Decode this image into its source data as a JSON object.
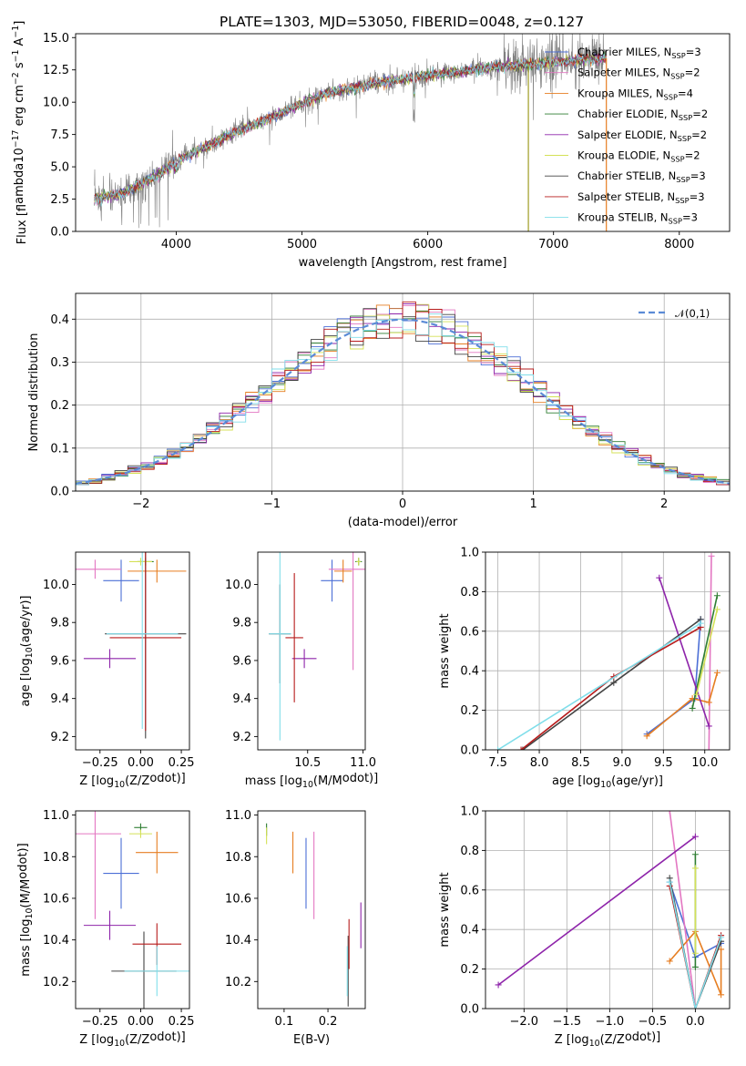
{
  "figure": {
    "title": "PLATE=1303, MJD=53050, FIBERID=0048, z=0.127"
  },
  "legend_spectra": [
    {
      "label": "Chabrier MILES, N$_{SSP}$=3",
      "color": "#4c6fd6"
    },
    {
      "label": "Salpeter MILES, N$_{SSP}$=2",
      "color": "#e377c2"
    },
    {
      "label": "Kroupa MILES, N$_{SSP}$=4",
      "color": "#e67e22"
    },
    {
      "label": "Chabrier ELODIE, N$_{SSP}$=2",
      "color": "#2e7d32"
    },
    {
      "label": "Salpeter ELODIE, N$_{SSP}$=2",
      "color": "#8e24aa"
    },
    {
      "label": "Kroupa ELODIE, N$_{SSP}$=2",
      "color": "#d4e157"
    },
    {
      "label": "Chabrier STELIB, N$_{SSP}$=3",
      "color": "#444444"
    },
    {
      "label": "Salpeter STELIB, N$_{SSP}$=3",
      "color": "#b71c1c"
    },
    {
      "label": "Kroupa STELIB, N$_{SSP}$=3",
      "color": "#80deea"
    }
  ],
  "colors": {
    "data": "#808080",
    "gauss": "#5b8bd6",
    "grid": "#b0b0b0"
  },
  "chart_data": [
    {
      "id": "spectrum",
      "type": "line",
      "title": "PLATE=1303, MJD=53050, FIBERID=0048, z=0.127",
      "xlabel": "wavelength [Angstrom, rest frame]",
      "ylabel": "Flux [f$_\\lambda$10$^{-17}$ erg cm$^{-2}$ s$^{-1}$ A$^{-1}$]",
      "xlim": [
        3200,
        8400
      ],
      "ylim": [
        0,
        15.3
      ],
      "xticks": [
        4000,
        5000,
        6000,
        7000,
        8000
      ],
      "yticks": [
        0,
        2.5,
        5,
        7.5,
        10,
        12.5,
        15
      ],
      "ytick_labels": [
        "0.0",
        "2.5",
        "5.0",
        "7.5",
        "10.0",
        "12.5",
        "15.0"
      ],
      "continuum_x": [
        3350,
        3500,
        3600,
        3700,
        3800,
        3900,
        4000,
        4200,
        4500,
        4800,
        5000,
        5200,
        5500,
        5800,
        6000,
        6300,
        6600,
        6800,
        7000,
        7200,
        7400
      ],
      "continuum_y": [
        2.6,
        2.8,
        3.0,
        3.6,
        4.1,
        4.7,
        5.5,
        6.4,
        7.8,
        9.0,
        9.9,
        10.7,
        11.3,
        11.8,
        12.1,
        12.4,
        12.8,
        12.9,
        13.1,
        13.3,
        13.4
      ],
      "grid": false,
      "legend_loc": "upper-right"
    },
    {
      "id": "residuals",
      "type": "histogram",
      "xlabel": "(data-model)/error",
      "ylabel": "Normed distribution",
      "xlim": [
        -2.5,
        2.5
      ],
      "ylim": [
        0,
        0.46
      ],
      "xticks": [
        -2,
        -1,
        0,
        1,
        2
      ],
      "xtick_labels": [
        "−2",
        "−1",
        "0",
        "1",
        "2"
      ],
      "yticks": [
        0,
        0.1,
        0.2,
        0.3,
        0.4
      ],
      "ytick_labels": [
        "0.0",
        "0.1",
        "0.2",
        "0.3",
        "0.4"
      ],
      "bin_width": 0.1,
      "gauss_label": "$\\mathcal{N}(0,1)$",
      "grid": true,
      "legend_loc": "upper-right"
    },
    {
      "id": "age-vs-Z",
      "type": "errorbar",
      "xlabel": "Z [log$_{10}$(Z/Z$_\\odot$)]",
      "ylabel": "age  [log$_{10}$(age/yr)]",
      "xlim": [
        -0.4,
        0.3
      ],
      "ylim": [
        9.13,
        10.17
      ],
      "xticks": [
        -0.25,
        0.0,
        0.25
      ],
      "xtick_labels": [
        "−0.25",
        "0.00",
        "0.25"
      ],
      "yticks": [
        9.2,
        9.4,
        9.6,
        9.8,
        10.0
      ],
      "ytick_labels": [
        "9.2",
        "9.4",
        "9.6",
        "9.8",
        "10.0"
      ],
      "points": [
        {
          "model": "Chabrier MILES",
          "x": -0.12,
          "y": 10.02,
          "xerr": 0.11,
          "yerr": 0.11
        },
        {
          "model": "Salpeter MILES",
          "x": -0.28,
          "y": 10.08,
          "xerr": 0.16,
          "yerr": 0.05
        },
        {
          "model": "Kroupa MILES",
          "x": 0.1,
          "y": 10.07,
          "xerr": 0.18,
          "yerr": 0.06
        },
        {
          "model": "Chabrier ELODIE",
          "x": 0.03,
          "y": 10.12,
          "xerr": 0.05,
          "yerr": 0.02
        },
        {
          "model": "Salpeter ELODIE",
          "x": -0.19,
          "y": 9.61,
          "xerr": 0.16,
          "yerr": 0.05
        },
        {
          "model": "Kroupa ELODIE",
          "x": 0.0,
          "y": 10.12,
          "xerr": 0.07,
          "yerr": 0.02
        },
        {
          "model": "Chabrier STELIB",
          "x": 0.03,
          "y": 9.74,
          "xerr": 0.25,
          "yerr": 0.55
        },
        {
          "model": "Salpeter STELIB",
          "x": 0.03,
          "y": 9.72,
          "xerr": 0.22,
          "yerr": 0.49
        },
        {
          "model": "Kroupa STELIB",
          "x": 0.01,
          "y": 9.74,
          "xerr": 0.22,
          "yerr": 0.5
        }
      ]
    },
    {
      "id": "age-vs-mass",
      "type": "errorbar",
      "xlabel": "mass [log$_{10}$(M/M$_\\odot$)]",
      "ylabel": "",
      "xlim": [
        10.05,
        11.02
      ],
      "ylim": [
        9.13,
        10.17
      ],
      "xticks": [
        10.5,
        11.0
      ],
      "xtick_labels": [
        "10.5",
        "11.0"
      ],
      "yticks": [
        9.2,
        9.4,
        9.6,
        9.8,
        10.0
      ],
      "ytick_labels": [
        "9.2",
        "9.4",
        "9.6",
        "9.8",
        "10.0"
      ],
      "points": [
        {
          "model": "Chabrier MILES",
          "x": 10.72,
          "y": 10.02,
          "xerr": 0.1,
          "yerr": 0.11
        },
        {
          "model": "Salpeter MILES",
          "x": 10.91,
          "y": 10.08,
          "xerr": 0.22,
          "yerr": 0.53
        },
        {
          "model": "Kroupa MILES",
          "x": 10.82,
          "y": 10.07,
          "xerr": 0.08,
          "yerr": 0.06
        },
        {
          "model": "Chabrier ELODIE",
          "x": 10.96,
          "y": 10.12,
          "xerr": 0.03,
          "yerr": 0.02
        },
        {
          "model": "Salpeter ELODIE",
          "x": 10.47,
          "y": 9.61,
          "xerr": 0.11,
          "yerr": 0.05
        },
        {
          "model": "Kroupa ELODIE",
          "x": 10.96,
          "y": 10.12,
          "xerr": 0.02,
          "yerr": 0.02
        },
        {
          "model": "Chabrier STELIB",
          "x": 10.25,
          "y": 9.74,
          "xerr": 0.1,
          "yerr": 0.26
        },
        {
          "model": "Salpeter STELIB",
          "x": 10.38,
          "y": 9.72,
          "xerr": 0.08,
          "yerr": 0.34
        },
        {
          "model": "Kroupa STELIB",
          "x": 10.25,
          "y": 9.74,
          "xerr": 0.1,
          "yerr": 0.56
        }
      ]
    },
    {
      "id": "weight-vs-age",
      "type": "line",
      "xlabel": "age  [log$_{10}$(age/yr)]",
      "ylabel": "mass weight",
      "xlim": [
        7.35,
        10.3
      ],
      "ylim": [
        0,
        1.0
      ],
      "xticks": [
        7.5,
        8.0,
        8.5,
        9.0,
        9.5,
        10.0
      ],
      "xtick_labels": [
        "7.5",
        "8.0",
        "8.5",
        "9.0",
        "9.5",
        "10.0"
      ],
      "yticks": [
        0,
        0.2,
        0.4,
        0.6,
        0.8,
        1.0
      ],
      "ytick_labels": [
        "0.0",
        "0.2",
        "0.4",
        "0.6",
        "0.8",
        "1.0"
      ],
      "grid": true,
      "series": [
        {
          "model": "Chabrier MILES",
          "x": [
            9.3,
            9.88,
            9.95
          ],
          "y": [
            0.08,
            0.26,
            0.66
          ]
        },
        {
          "model": "Salpeter MILES",
          "x": [
            10.08,
            10.05
          ],
          "y": [
            0.98,
            0.0
          ]
        },
        {
          "model": "Kroupa MILES",
          "x": [
            9.3,
            9.85,
            10.05,
            10.15
          ],
          "y": [
            0.07,
            0.26,
            0.24,
            0.39
          ]
        },
        {
          "model": "Chabrier ELODIE",
          "x": [
            9.85,
            10.15
          ],
          "y": [
            0.21,
            0.78
          ]
        },
        {
          "model": "Salpeter ELODIE",
          "x": [
            9.45,
            10.05
          ],
          "y": [
            0.87,
            0.12
          ]
        },
        {
          "model": "Kroupa ELODIE",
          "x": [
            9.9,
            10.15
          ],
          "y": [
            0.28,
            0.71
          ]
        },
        {
          "model": "Chabrier STELIB",
          "x": [
            7.8,
            8.9,
            9.95
          ],
          "y": [
            0.0,
            0.34,
            0.66
          ]
        },
        {
          "model": "Salpeter STELIB",
          "x": [
            7.78,
            8.9,
            9.95
          ],
          "y": [
            0.0,
            0.37,
            0.62
          ]
        },
        {
          "model": "Kroupa STELIB",
          "x": [
            7.5,
            9.95
          ],
          "y": [
            0.0,
            0.64
          ]
        }
      ]
    },
    {
      "id": "mass-vs-Z",
      "type": "errorbar",
      "xlabel": "Z [log$_{10}$(Z/Z$_\\odot$)]",
      "ylabel": "mass [log$_{10}$(M/M$_\\odot$)]",
      "xlim": [
        -0.4,
        0.3
      ],
      "ylim": [
        10.07,
        11.02
      ],
      "xticks": [
        -0.25,
        0.0,
        0.25
      ],
      "xtick_labels": [
        "−0.25",
        "0.00",
        "0.25"
      ],
      "yticks": [
        10.2,
        10.4,
        10.6,
        10.8,
        11.0
      ],
      "ytick_labels": [
        "10.2",
        "10.4",
        "10.6",
        "10.8",
        "11.0"
      ],
      "points": [
        {
          "model": "Chabrier MILES",
          "x": -0.12,
          "y": 10.72,
          "xerr": 0.11,
          "yerr": 0.17
        },
        {
          "model": "Salpeter MILES",
          "x": -0.28,
          "y": 10.91,
          "xerr": 0.16,
          "yerr": 0.41
        },
        {
          "model": "Kroupa MILES",
          "x": 0.1,
          "y": 10.82,
          "xerr": 0.13,
          "yerr": 0.1
        },
        {
          "model": "Chabrier ELODIE",
          "x": 0.0,
          "y": 10.94,
          "xerr": 0.04,
          "yerr": 0.02
        },
        {
          "model": "Salpeter ELODIE",
          "x": -0.19,
          "y": 10.47,
          "xerr": 0.16,
          "yerr": 0.07
        },
        {
          "model": "Kroupa ELODIE",
          "x": 0.0,
          "y": 10.91,
          "xerr": 0.07,
          "yerr": 0.02
        },
        {
          "model": "Chabrier STELIB",
          "x": 0.02,
          "y": 10.25,
          "xerr": 0.2,
          "yerr": 0.19
        },
        {
          "model": "Salpeter STELIB",
          "x": 0.1,
          "y": 10.38,
          "xerr": 0.15,
          "yerr": 0.1
        },
        {
          "model": "Kroupa STELIB",
          "x": 0.1,
          "y": 10.25,
          "xerr": 0.2,
          "yerr": 0.12
        }
      ]
    },
    {
      "id": "mass-vs-EBV",
      "type": "errorbar",
      "xlabel": "E(B-V)",
      "ylabel": "",
      "xlim": [
        0.04,
        0.285
      ],
      "ylim": [
        10.07,
        11.02
      ],
      "xticks": [
        0.1,
        0.2
      ],
      "xtick_labels": [
        "0.1",
        "0.2"
      ],
      "yticks": [
        10.2,
        10.4,
        10.6,
        10.8,
        11.0
      ],
      "ytick_labels": [
        "10.2",
        "10.4",
        "10.6",
        "10.8",
        "11.0"
      ],
      "points": [
        {
          "model": "Chabrier MILES",
          "x": 0.15,
          "y": 10.72,
          "xerr": 0.0,
          "yerr": 0.17
        },
        {
          "model": "Salpeter MILES",
          "x": 0.168,
          "y": 10.71,
          "xerr": 0.0,
          "yerr": 0.21
        },
        {
          "model": "Kroupa MILES",
          "x": 0.12,
          "y": 10.82,
          "xerr": 0.0,
          "yerr": 0.1
        },
        {
          "model": "Chabrier ELODIE",
          "x": 0.06,
          "y": 10.93,
          "xerr": 0.0,
          "yerr": 0.03
        },
        {
          "model": "Salpeter ELODIE",
          "x": 0.275,
          "y": 10.47,
          "xerr": 0.0,
          "yerr": 0.11
        },
        {
          "model": "Kroupa ELODIE",
          "x": 0.06,
          "y": 10.9,
          "xerr": 0.0,
          "yerr": 0.04
        },
        {
          "model": "Chabrier STELIB",
          "x": 0.246,
          "y": 10.25,
          "xerr": 0.0,
          "yerr": 0.17
        },
        {
          "model": "Salpeter STELIB",
          "x": 0.248,
          "y": 10.38,
          "xerr": 0.0,
          "yerr": 0.12
        },
        {
          "model": "Kroupa STELIB",
          "x": 0.244,
          "y": 10.25,
          "xerr": 0.0,
          "yerr": 0.12
        }
      ]
    },
    {
      "id": "weight-vs-Z",
      "type": "line",
      "xlabel": "Z [log$_{10}$(Z/Z$_\\odot$)]",
      "ylabel": "mass weight",
      "xlim": [
        -2.45,
        0.4
      ],
      "ylim": [
        0,
        1.0
      ],
      "xticks": [
        -2.0,
        -1.5,
        -1.0,
        -0.5,
        0.0
      ],
      "xtick_labels": [
        "−2.0",
        "−1.5",
        "−1.0",
        "−0.5",
        "0.0"
      ],
      "yticks": [
        0,
        0.2,
        0.4,
        0.6,
        0.8,
        1.0
      ],
      "ytick_labels": [
        "0.0",
        "0.2",
        "0.4",
        "0.6",
        "0.8",
        "1.0"
      ],
      "grid": true,
      "series": [
        {
          "model": "Chabrier MILES",
          "x": [
            -0.3,
            0.0,
            0.3
          ],
          "y": [
            0.64,
            0.26,
            0.33
          ]
        },
        {
          "model": "Salpeter MILES",
          "x": [
            -0.3,
            0.0
          ],
          "y": [
            1.0,
            0.0
          ]
        },
        {
          "model": "Kroupa MILES",
          "x": [
            -0.3,
            0.0,
            0.3,
            0.3
          ],
          "y": [
            0.24,
            0.39,
            0.07,
            0.3
          ]
        },
        {
          "model": "Chabrier ELODIE",
          "x": [
            0.0,
            0.0
          ],
          "y": [
            0.78,
            0.21
          ]
        },
        {
          "model": "Salpeter ELODIE",
          "x": [
            -2.3,
            0.0
          ],
          "y": [
            0.12,
            0.87
          ]
        },
        {
          "model": "Kroupa ELODIE",
          "x": [
            0.0,
            0.0
          ],
          "y": [
            0.71,
            0.28
          ]
        },
        {
          "model": "Chabrier STELIB",
          "x": [
            -0.3,
            0.0,
            0.3
          ],
          "y": [
            0.66,
            0.0,
            0.34
          ]
        },
        {
          "model": "Salpeter STELIB",
          "x": [
            -0.3,
            0.0,
            0.3
          ],
          "y": [
            0.62,
            0.0,
            0.37
          ]
        },
        {
          "model": "Kroupa STELIB",
          "x": [
            -0.3,
            0.0,
            0.3
          ],
          "y": [
            0.64,
            0.0,
            0.36
          ]
        }
      ]
    }
  ]
}
